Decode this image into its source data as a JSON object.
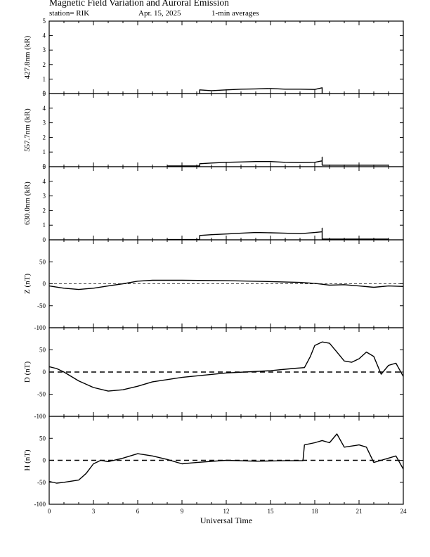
{
  "header": {
    "title": "Magnetic Field Variation and Auroral Emission",
    "station": "station= RIK",
    "date": "Apr. 15, 2025",
    "averaging": "1-min averages"
  },
  "chart_data": [
    {
      "type": "line",
      "ylabel": "427.8nm (kR)",
      "ylim": [
        0,
        5
      ],
      "yticks": [
        0,
        1,
        2,
        3,
        4,
        5
      ],
      "ytick_labels": [
        "0",
        "1",
        "2",
        "3",
        "4",
        "5"
      ],
      "xlim": [
        0,
        24
      ],
      "zero_line": false,
      "series": [
        {
          "x": [
            10.2,
            10.2,
            11,
            12,
            13,
            14,
            15,
            16,
            17,
            18,
            18.5,
            18.5
          ],
          "y": [
            0,
            0.25,
            0.2,
            0.25,
            0.3,
            0.32,
            0.35,
            0.3,
            0.3,
            0.28,
            0.4,
            0
          ]
        }
      ]
    },
    {
      "type": "line",
      "ylabel": "557.7nm (kR)",
      "ylim": [
        0,
        5
      ],
      "yticks": [
        0,
        1,
        2,
        3,
        4,
        5
      ],
      "ytick_labels": [
        "0",
        "1",
        "2",
        "3",
        "4",
        "5"
      ],
      "xlim": [
        0,
        24
      ],
      "zero_line": false,
      "series": [
        {
          "x": [
            8,
            10.2,
            10.2,
            11,
            12,
            13,
            14,
            15,
            16,
            17,
            18,
            18.5,
            18.5,
            18.5,
            23
          ],
          "y": [
            0.05,
            0.05,
            0.2,
            0.25,
            0.3,
            0.32,
            0.35,
            0.35,
            0.3,
            0.28,
            0.3,
            0.4,
            0.65,
            0.1,
            0.1
          ]
        }
      ]
    },
    {
      "type": "line",
      "ylabel": "630.0nm (kR)",
      "ylim": [
        0,
        5
      ],
      "yticks": [
        0,
        1,
        2,
        3,
        4,
        5
      ],
      "ytick_labels": [
        "0",
        "1",
        "2",
        "3",
        "4",
        "5"
      ],
      "xlim": [
        0,
        24
      ],
      "zero_line": false,
      "series": [
        {
          "x": [
            8,
            10.2,
            10.2,
            11,
            12,
            13,
            14,
            15,
            16,
            17,
            18,
            18.5,
            18.5,
            18.5,
            23
          ],
          "y": [
            0.02,
            0.02,
            0.3,
            0.35,
            0.4,
            0.45,
            0.5,
            0.48,
            0.45,
            0.42,
            0.5,
            0.55,
            0.8,
            0.05,
            0.05
          ]
        }
      ]
    },
    {
      "type": "line",
      "ylabel": "Z (nT)",
      "ylim": [
        -100,
        100
      ],
      "yticks": [
        -100,
        -50,
        0,
        50
      ],
      "ytick_labels": [
        "-100",
        "-50",
        "0",
        "50"
      ],
      "xlim": [
        0,
        24
      ],
      "zero_line": "thin-dashed",
      "series": [
        {
          "x": [
            0,
            1,
            2,
            3,
            4,
            5,
            6,
            7,
            9,
            12,
            15,
            17,
            18,
            19,
            20,
            21,
            22,
            23,
            24
          ],
          "y": [
            -5,
            -10,
            -13,
            -10,
            -5,
            0,
            6,
            8,
            8,
            7,
            5,
            3,
            1,
            -3,
            -2,
            -5,
            -8,
            -5,
            -6
          ]
        }
      ]
    },
    {
      "type": "line",
      "ylabel": "D (nT)",
      "ylim": [
        -100,
        100
      ],
      "yticks": [
        -100,
        -50,
        0,
        50
      ],
      "ytick_labels": [
        "-100",
        "-50",
        "0",
        "50"
      ],
      "xlim": [
        0,
        24
      ],
      "zero_line": "thick-dashed",
      "series": [
        {
          "x": [
            0,
            0.5,
            1,
            2,
            3,
            4,
            5,
            6,
            7,
            9,
            12,
            15,
            16.5,
            17.3,
            17.7,
            18,
            18.5,
            19,
            19.5,
            20,
            20.5,
            21,
            21.5,
            22,
            22.5,
            23,
            23.5,
            24
          ],
          "y": [
            12,
            8,
            0,
            -20,
            -35,
            -43,
            -40,
            -32,
            -22,
            -12,
            -2,
            3,
            8,
            10,
            35,
            60,
            68,
            65,
            45,
            25,
            22,
            30,
            45,
            35,
            -5,
            15,
            20,
            -10
          ]
        }
      ]
    },
    {
      "type": "line",
      "ylabel": "H (nT)",
      "ylim": [
        -100,
        100
      ],
      "yticks": [
        -100,
        -50,
        0,
        50
      ],
      "ytick_labels": [
        "-100",
        "-50",
        "0",
        "50"
      ],
      "xlim": [
        0,
        24
      ],
      "zero_line": "thick-dashed",
      "xticks": [
        0,
        3,
        6,
        9,
        12,
        15,
        18,
        21,
        24
      ],
      "xtick_labels": [
        "0",
        "3",
        "6",
        "9",
        "12",
        "15",
        "18",
        "21",
        "24"
      ],
      "xlabel": "Universal Time",
      "series": [
        {
          "x": [
            0,
            0.5,
            1,
            2,
            2.5,
            3,
            3.5,
            4,
            5,
            6,
            7,
            8,
            9,
            10,
            12,
            14,
            16,
            17.2,
            17.3,
            18,
            18.5,
            19,
            19.5,
            20,
            21,
            21.5,
            22,
            22.5,
            23,
            23.5,
            24
          ],
          "y": [
            -48,
            -52,
            -50,
            -45,
            -30,
            -8,
            0,
            -3,
            5,
            15,
            10,
            2,
            -8,
            -5,
            0,
            -2,
            -1,
            -1,
            35,
            40,
            45,
            40,
            60,
            30,
            35,
            30,
            -5,
            0,
            5,
            10,
            -20
          ]
        }
      ]
    }
  ]
}
